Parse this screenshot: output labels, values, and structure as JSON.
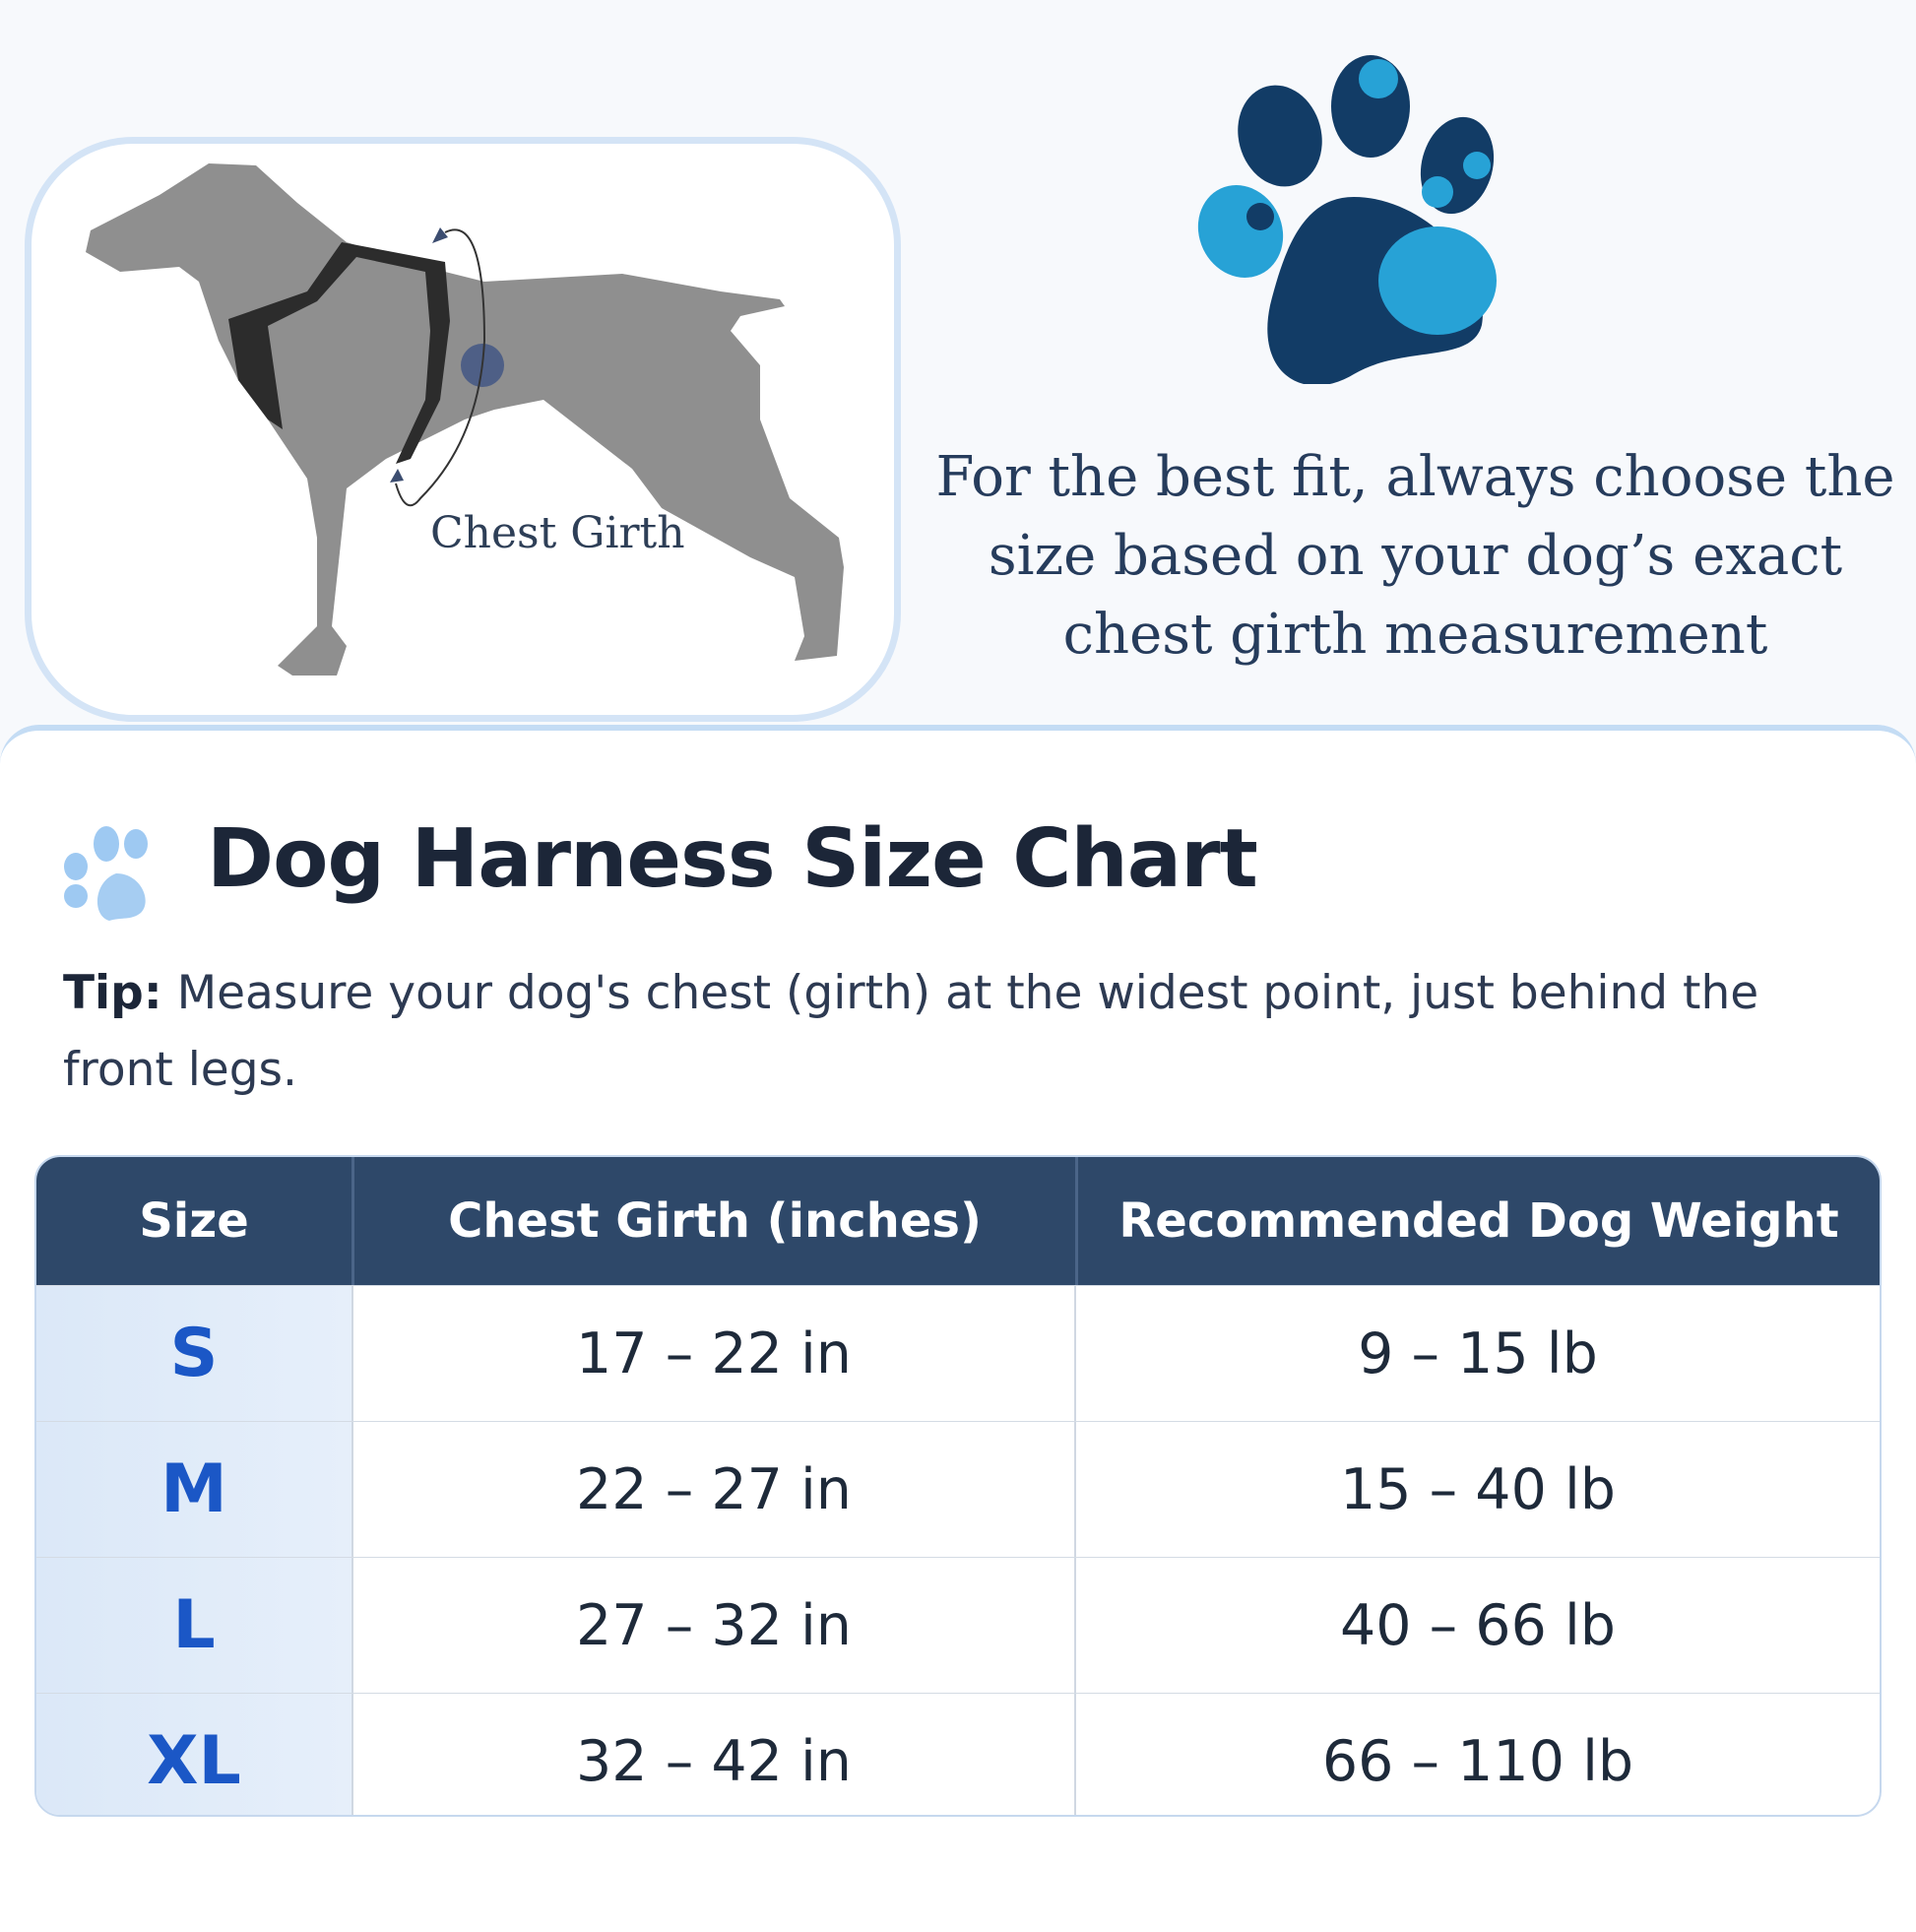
{
  "illustration": {
    "chest_label": "Chest Girth"
  },
  "quote": "For the best fit, always choose the size based on your dog’s exact chest girth measurement",
  "title": "Dog Harness Size Chart",
  "tip": {
    "label": "Tip:",
    "text": "Measure your dog's chest (girth) at the widest point, just behind the front legs."
  },
  "table": {
    "headers": [
      "Size",
      "Chest Girth (inches)",
      "Recommended Dog Weight"
    ],
    "rows": [
      {
        "size": "S",
        "girth": "17 – 22 in",
        "weight": "9 – 15 lb"
      },
      {
        "size": "M",
        "girth": "22 – 27 in",
        "weight": "15 – 40 lb"
      },
      {
        "size": "L",
        "girth": "27 – 32 in",
        "weight": "40 – 66 lb"
      },
      {
        "size": "XL",
        "girth": "32 – 42 in",
        "weight": "66 – 110 lb"
      }
    ]
  },
  "colors": {
    "header": "#2e4869",
    "size_text": "#1b57c6",
    "paw_dark": "#123c66",
    "paw_light": "#27a2d6"
  }
}
